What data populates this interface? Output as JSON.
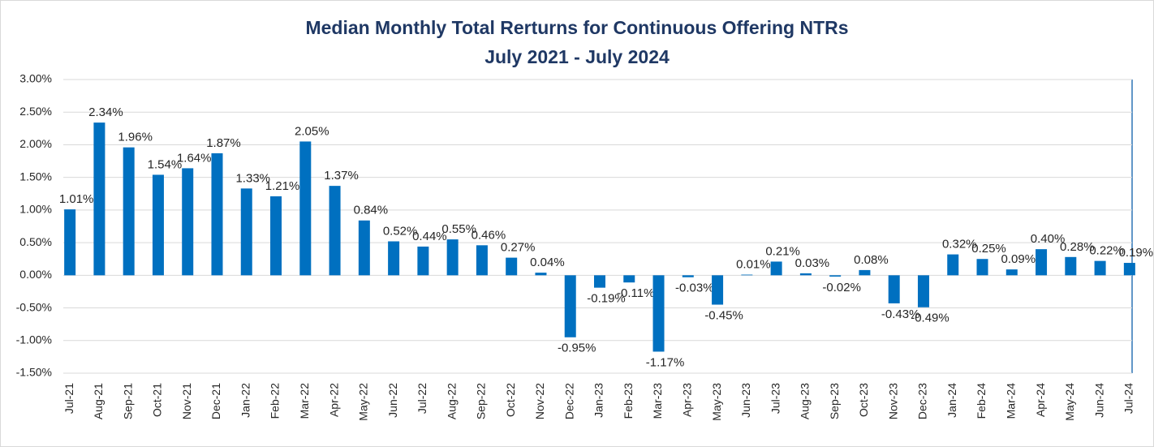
{
  "chart_data": {
    "type": "bar",
    "title": "Median Monthly Total Rerturns for Continuous Offering NTRs",
    "subtitle": "July 2021 - July 2024",
    "categories": [
      "Jul-21",
      "Aug-21",
      "Sep-21",
      "Oct-21",
      "Nov-21",
      "Dec-21",
      "Jan-22",
      "Feb-22",
      "Mar-22",
      "Apr-22",
      "May-22",
      "Jun-22",
      "Jul-22",
      "Aug-22",
      "Sep-22",
      "Oct-22",
      "Nov-22",
      "Dec-22",
      "Jan-23",
      "Feb-23",
      "Mar-23",
      "Apr-23",
      "May-23",
      "Jun-23",
      "Jul-23",
      "Aug-23",
      "Sep-23",
      "Oct-23",
      "Nov-23",
      "Dec-23",
      "Jan-24",
      "Feb-24",
      "Mar-24",
      "Apr-24",
      "May-24",
      "Jun-24",
      "Jul-24"
    ],
    "values": [
      1.01,
      2.34,
      1.96,
      1.54,
      1.64,
      1.87,
      1.33,
      1.21,
      2.05,
      1.37,
      0.84,
      0.52,
      0.44,
      0.55,
      0.46,
      0.27,
      0.04,
      -0.95,
      -0.19,
      -0.11,
      -1.17,
      -0.03,
      -0.45,
      0.01,
      0.21,
      0.03,
      -0.02,
      0.08,
      -0.43,
      -0.49,
      0.32,
      0.25,
      0.09,
      0.4,
      0.28,
      0.22,
      0.19
    ],
    "value_labels": [
      "1.01%",
      "2.34%",
      "1.96%",
      "1.54%",
      "1.64%",
      "1.87%",
      "1.33%",
      "1.21%",
      "2.05%",
      "1.37%",
      "0.84%",
      "0.52%",
      "0.44%",
      "0.55%",
      "0.46%",
      "0.27%",
      "0.04%",
      "-0.95%",
      "-0.19%",
      "-0.11%",
      "-1.17%",
      "-0.03%",
      "-0.45%",
      "0.01%",
      "0.21%",
      "0.03%",
      "-0.02%",
      "0.08%",
      "-0.43%",
      "-0.49%",
      "0.32%",
      "0.25%",
      "0.09%",
      "0.40%",
      "0.28%",
      "0.22%",
      "0.19%"
    ],
    "color": "#0070c0",
    "ylim": [
      -1.5,
      3
    ],
    "yticks": [
      {
        "value": -1.5,
        "label": "-1.50%"
      },
      {
        "value": -1,
        "label": "-1.00%"
      },
      {
        "value": -0.5,
        "label": "-0.50%"
      },
      {
        "value": 0,
        "label": "0.00%"
      },
      {
        "value": 0.5,
        "label": "0.50%"
      },
      {
        "value": 1,
        "label": "1.00%"
      },
      {
        "value": 1.5,
        "label": "1.50%"
      },
      {
        "value": 2,
        "label": "2.00%"
      },
      {
        "value": 2.5,
        "label": "2.50%"
      },
      {
        "value": 3,
        "label": "3.00%"
      }
    ],
    "grid": true
  }
}
